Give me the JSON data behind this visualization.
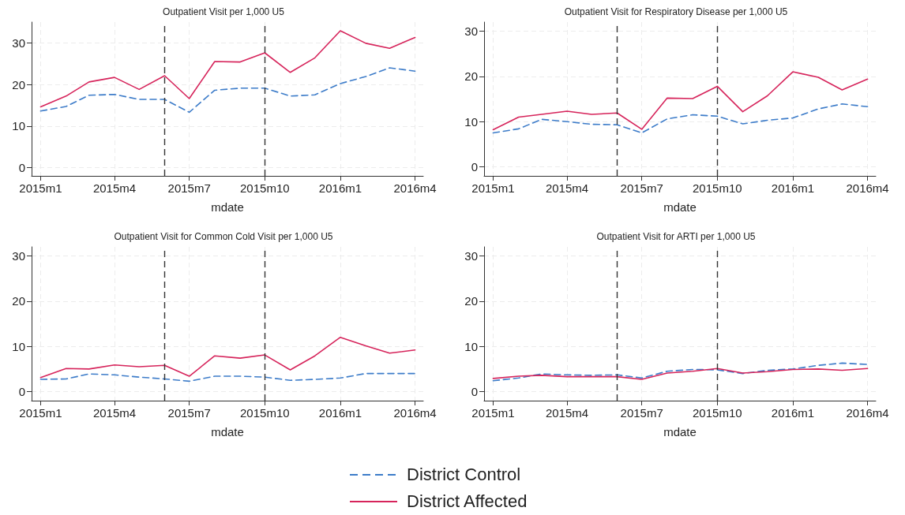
{
  "chart_data": [
    {
      "type": "line",
      "title": "Outpatient Visit per 1,000 U5",
      "xlabel": "mdate",
      "x": [
        "2015-01",
        "2015-02",
        "2015-03",
        "2015-04",
        "2015-05",
        "2015-06",
        "2015-07",
        "2015-08",
        "2015-09",
        "2015-10",
        "2015-11",
        "2015-12",
        "2016-01",
        "2016-02",
        "2016-03",
        "2016-04"
      ],
      "xlim": [
        "2014-12-21",
        "2016-04-11"
      ],
      "xticks": [
        {
          "value": "2015-01",
          "label": "2015m1"
        },
        {
          "value": "2015-04",
          "label": "2015m4"
        },
        {
          "value": "2015-07",
          "label": "2015m7"
        },
        {
          "value": "2015-10",
          "label": "2015m10"
        },
        {
          "value": "2016-01",
          "label": "2016m1"
        },
        {
          "value": "2016-04",
          "label": "2016m4"
        }
      ],
      "ylim": [
        -2,
        35
      ],
      "yticks": [
        0,
        10,
        20,
        30
      ],
      "grid": true,
      "legend": "bottom",
      "marker": "none",
      "ref_lines": [
        {
          "axis": "x",
          "value": "2015-06",
          "color": "#333333",
          "line_style": "dashed"
        },
        {
          "axis": "x",
          "value": "2015-10",
          "color": "#333333",
          "line_style": "dashed"
        }
      ],
      "series": [
        {
          "name": "District Control",
          "color": "#3d7cc9",
          "line_style": "dashed",
          "values": [
            13.6,
            14.7,
            17.4,
            17.6,
            16.4,
            16.4,
            13.3,
            18.6,
            19.1,
            19.1,
            17.2,
            17.5,
            20.2,
            21.9,
            24.0,
            23.2
          ]
        },
        {
          "name": "District Affected",
          "color": "#d6245b",
          "line_style": "solid",
          "values": [
            14.6,
            17.2,
            20.6,
            21.7,
            18.8,
            22.1,
            16.6,
            25.5,
            25.4,
            27.6,
            22.9,
            26.4,
            32.9,
            29.9,
            28.7,
            31.3
          ]
        }
      ]
    },
    {
      "type": "line",
      "title": "Outpatient Visit for Respiratory Disease per 1,000 U5",
      "xlabel": "mdate",
      "x": [
        "2015-01",
        "2015-02",
        "2015-03",
        "2015-04",
        "2015-05",
        "2015-06",
        "2015-07",
        "2015-08",
        "2015-09",
        "2015-10",
        "2015-11",
        "2015-12",
        "2016-01",
        "2016-02",
        "2016-03",
        "2016-04"
      ],
      "xlim": [
        "2014-12-21",
        "2016-04-11"
      ],
      "xticks": [
        {
          "value": "2015-01",
          "label": "2015m1"
        },
        {
          "value": "2015-04",
          "label": "2015m4"
        },
        {
          "value": "2015-07",
          "label": "2015m7"
        },
        {
          "value": "2015-10",
          "label": "2015m10"
        },
        {
          "value": "2016-01",
          "label": "2016m1"
        },
        {
          "value": "2016-04",
          "label": "2016m4"
        }
      ],
      "ylim": [
        -2,
        32
      ],
      "yticks": [
        0,
        10,
        20,
        30
      ],
      "grid": true,
      "legend": "bottom",
      "marker": "none",
      "ref_lines": [
        {
          "axis": "x",
          "value": "2015-06",
          "color": "#333333",
          "line_style": "dashed"
        },
        {
          "axis": "x",
          "value": "2015-10",
          "color": "#333333",
          "line_style": "dashed"
        }
      ],
      "series": [
        {
          "name": "District Control",
          "color": "#3d7cc9",
          "line_style": "dashed",
          "values": [
            7.5,
            8.4,
            10.5,
            10.0,
            9.4,
            9.3,
            7.5,
            10.6,
            11.5,
            11.2,
            9.5,
            10.3,
            10.8,
            12.8,
            13.9,
            13.3
          ]
        },
        {
          "name": "District Affected",
          "color": "#d6245b",
          "line_style": "solid",
          "values": [
            8.2,
            11.0,
            11.6,
            12.3,
            11.6,
            11.9,
            8.3,
            15.2,
            15.1,
            17.8,
            12.2,
            15.7,
            21.0,
            19.8,
            17.0,
            19.4
          ]
        }
      ]
    },
    {
      "type": "line",
      "title": "Outpatient Visit for Common Cold Visit per 1,000 U5",
      "xlabel": "mdate",
      "x": [
        "2015-01",
        "2015-02",
        "2015-03",
        "2015-04",
        "2015-05",
        "2015-06",
        "2015-07",
        "2015-08",
        "2015-09",
        "2015-10",
        "2015-11",
        "2015-12",
        "2016-01",
        "2016-02",
        "2016-03",
        "2016-04"
      ],
      "xlim": [
        "2014-12-21",
        "2016-04-11"
      ],
      "xticks": [
        {
          "value": "2015-01",
          "label": "2015m1"
        },
        {
          "value": "2015-04",
          "label": "2015m4"
        },
        {
          "value": "2015-07",
          "label": "2015m7"
        },
        {
          "value": "2015-10",
          "label": "2015m10"
        },
        {
          "value": "2016-01",
          "label": "2016m1"
        },
        {
          "value": "2016-04",
          "label": "2016m4"
        }
      ],
      "ylim": [
        -2,
        32
      ],
      "yticks": [
        0,
        10,
        20,
        30
      ],
      "grid": true,
      "legend": "bottom",
      "marker": "none",
      "ref_lines": [
        {
          "axis": "x",
          "value": "2015-06",
          "color": "#333333",
          "line_style": "dashed"
        },
        {
          "axis": "x",
          "value": "2015-10",
          "color": "#333333",
          "line_style": "dashed"
        }
      ],
      "series": [
        {
          "name": "District Control",
          "color": "#3d7cc9",
          "line_style": "dashed",
          "values": [
            2.7,
            2.8,
            3.9,
            3.7,
            3.2,
            2.8,
            2.3,
            3.4,
            3.4,
            3.2,
            2.5,
            2.7,
            3.0,
            4.0,
            4.0,
            4.0
          ]
        },
        {
          "name": "District Affected",
          "color": "#d6245b",
          "line_style": "solid",
          "values": [
            3.1,
            5.1,
            5.0,
            5.9,
            5.5,
            5.8,
            3.4,
            7.9,
            7.4,
            8.1,
            4.8,
            7.9,
            12.0,
            10.1,
            8.5,
            9.2
          ]
        }
      ]
    },
    {
      "type": "line",
      "title": "Outpatient Visit for ARTI per 1,000 U5",
      "xlabel": "mdate",
      "x": [
        "2015-01",
        "2015-02",
        "2015-03",
        "2015-04",
        "2015-05",
        "2015-06",
        "2015-07",
        "2015-08",
        "2015-09",
        "2015-10",
        "2015-11",
        "2015-12",
        "2016-01",
        "2016-02",
        "2016-03",
        "2016-04"
      ],
      "xlim": [
        "2014-12-21",
        "2016-04-11"
      ],
      "xticks": [
        {
          "value": "2015-01",
          "label": "2015m1"
        },
        {
          "value": "2015-04",
          "label": "2015m4"
        },
        {
          "value": "2015-07",
          "label": "2015m7"
        },
        {
          "value": "2015-10",
          "label": "2015m10"
        },
        {
          "value": "2016-01",
          "label": "2016m1"
        },
        {
          "value": "2016-04",
          "label": "2016m4"
        }
      ],
      "ylim": [
        -2,
        32
      ],
      "yticks": [
        0,
        10,
        20,
        30
      ],
      "grid": true,
      "legend": "bottom",
      "marker": "none",
      "ref_lines": [
        {
          "axis": "x",
          "value": "2015-06",
          "color": "#333333",
          "line_style": "dashed"
        },
        {
          "axis": "x",
          "value": "2015-10",
          "color": "#333333",
          "line_style": "dashed"
        }
      ],
      "series": [
        {
          "name": "District Control",
          "color": "#3d7cc9",
          "line_style": "dashed",
          "values": [
            2.4,
            3.0,
            3.9,
            3.7,
            3.6,
            3.7,
            3.0,
            4.5,
            4.9,
            4.8,
            4.0,
            4.7,
            5.0,
            5.8,
            6.3,
            6.0
          ]
        },
        {
          "name": "District Affected",
          "color": "#d6245b",
          "line_style": "solid",
          "values": [
            2.9,
            3.4,
            3.6,
            3.3,
            3.3,
            3.3,
            2.7,
            4.1,
            4.5,
            5.1,
            4.1,
            4.4,
            4.9,
            5.0,
            4.7,
            5.1
          ]
        }
      ]
    }
  ]
}
